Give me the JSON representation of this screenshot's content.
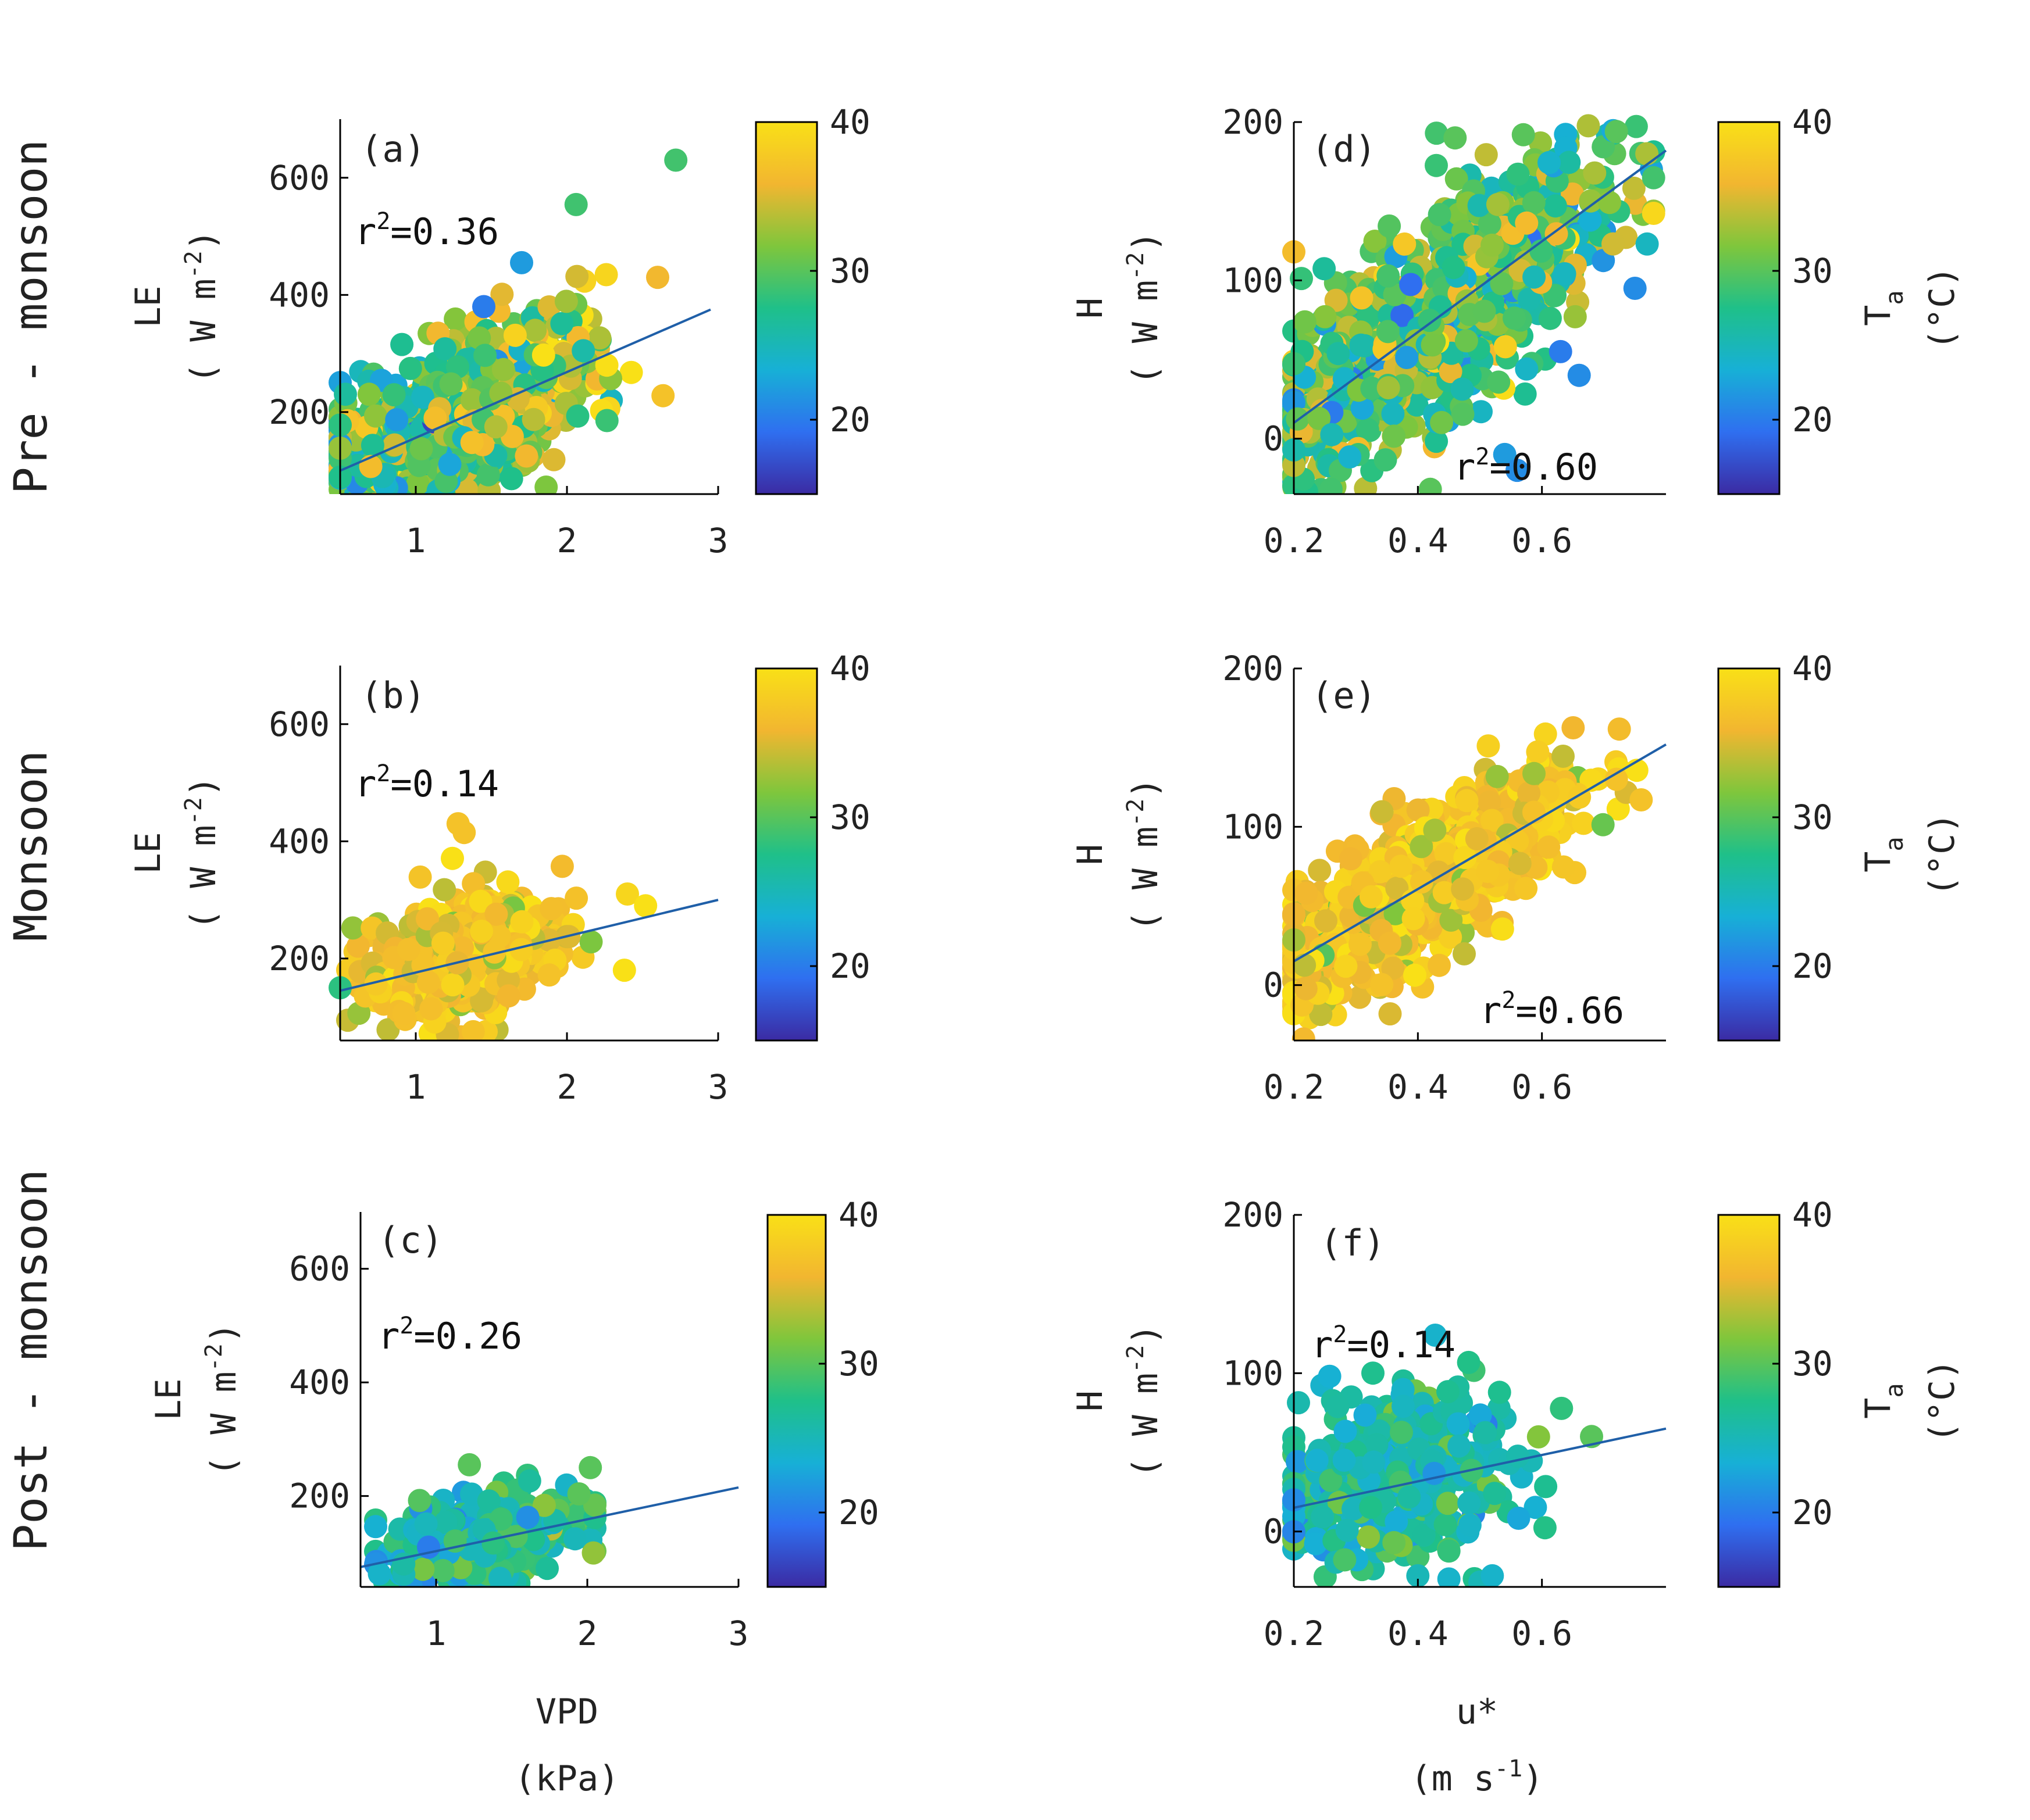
{
  "figure": {
    "rows": [
      {
        "title": "Pre - monsoon"
      },
      {
        "title": "Monsoon"
      },
      {
        "title": "Post - monsoon"
      }
    ],
    "left_column": {
      "y_label_top": "LE",
      "y_label_unit": "( W m",
      "y_label_exp": "-2",
      "y_label_close": ")",
      "x_label": "VPD",
      "x_label_unit": "(kPa)"
    },
    "right_column": {
      "y_label_top": "H",
      "y_label_unit": "( W m",
      "y_label_exp": "-2",
      "y_label_close": ")",
      "x_label": "u*",
      "x_label_unit_open": "(m s",
      "x_label_unit_exp": "-1",
      "x_label_unit_close": ")"
    },
    "colorbar": {
      "ticks": [
        "20",
        "30",
        "40"
      ],
      "range": [
        15,
        40
      ],
      "label": "T",
      "label_sub": "a",
      "label_unit": "(°C)",
      "colors": [
        "#3b2ba3",
        "#2f6ff0",
        "#17b0d6",
        "#1fc089",
        "#7fc63c",
        "#f2b630",
        "#f9e017"
      ]
    }
  },
  "chart_data": [
    {
      "id": "a",
      "panel_label": "(a)",
      "type": "scatter",
      "r2_base": "r",
      "r2_exp": "2",
      "r2_value": "=0.36",
      "xlabel": "VPD (kPa)",
      "ylabel": "LE (W m-2)",
      "xlim": [
        0.5,
        3
      ],
      "ylim": [
        60,
        700
      ],
      "xticks": [
        1,
        2,
        3
      ],
      "yticks": [
        200,
        400,
        600
      ],
      "fit": {
        "x1": 0.5,
        "y1": 100,
        "x2": 2.95,
        "y2": 375
      },
      "points": {
        "x_mean": 1.2,
        "x_sd": 0.45,
        "x_min": 0.5,
        "x_max": 2.9,
        "slope": 112,
        "intercept": 45,
        "noise": 65,
        "t_mean": 30,
        "t_sd": 4.5,
        "t_slope": 3.5,
        "n": 950
      },
      "extras": [
        [
          2.72,
          630,
          29
        ],
        [
          1.45,
          380,
          20
        ],
        [
          1.7,
          455,
          22
        ],
        [
          2.6,
          430,
          36
        ]
      ]
    },
    {
      "id": "b",
      "panel_label": "(b)",
      "type": "scatter",
      "r2_base": "r",
      "r2_exp": "2",
      "r2_value": "=0.14",
      "xlabel": "VPD (kPa)",
      "ylabel": "LE (W m-2)",
      "xlim": [
        0.5,
        3
      ],
      "ylim": [
        60,
        700
      ],
      "xticks": [
        1,
        2,
        3
      ],
      "yticks": [
        200,
        400,
        600
      ],
      "fit": {
        "x1": 0.5,
        "y1": 145,
        "x2": 3,
        "y2": 300
      },
      "points": {
        "x_mean": 1.3,
        "x_sd": 0.28,
        "x_min": 0.55,
        "x_max": 2.55,
        "slope": 60,
        "intercept": 125,
        "noise": 45,
        "t_mean": 36.5,
        "t_sd": 1.8,
        "t_slope": 0.5,
        "n": 720
      },
      "extras": [
        [
          1.28,
          430,
          37
        ],
        [
          1.32,
          415,
          37
        ],
        [
          2.4,
          310,
          39
        ],
        [
          2.52,
          290,
          40
        ],
        [
          2.38,
          180,
          40
        ],
        [
          1.38,
          75,
          37
        ],
        [
          0.5,
          150,
          28
        ]
      ]
    },
    {
      "id": "c",
      "panel_label": "(c)",
      "type": "scatter",
      "r2_base": "r",
      "r2_exp": "2",
      "r2_value": "=0.26",
      "xlabel": "VPD (kPa)",
      "ylabel": "LE (W m-2)",
      "xlim": [
        0.5,
        3
      ],
      "ylim": [
        40,
        700
      ],
      "xticks": [
        1,
        2,
        3
      ],
      "yticks": [
        200,
        400,
        600
      ],
      "fit": {
        "x1": 0.5,
        "y1": 75,
        "x2": 3,
        "y2": 215
      },
      "points": {
        "x_mean": 1.3,
        "x_sd": 0.33,
        "x_min": 0.6,
        "x_max": 2.05,
        "slope": 58,
        "intercept": 40,
        "noise": 38,
        "t_mean": 26.5,
        "t_sd": 2.5,
        "t_slope": 3,
        "n": 420
      },
      "extras": [
        [
          1.22,
          255,
          30
        ],
        [
          2.02,
          250,
          30
        ],
        [
          0.95,
          110,
          20
        ]
      ]
    },
    {
      "id": "d",
      "panel_label": "(d)",
      "type": "scatter",
      "r2_base": "r",
      "r2_exp": "2",
      "r2_value": "=0.60",
      "xlabel": "u* (m s-1)",
      "ylabel": "H (W m-2)",
      "xlim": [
        0.2,
        0.8
      ],
      "ylim": [
        -35,
        200
      ],
      "xticks": [
        0.2,
        0.4,
        0.6
      ],
      "yticks": [
        0,
        100,
        200
      ],
      "fit": {
        "x1": 0.2,
        "y1": 10,
        "x2": 0.8,
        "y2": 182
      },
      "points": {
        "x_mean": 0.42,
        "x_sd": 0.14,
        "x_min": 0.2,
        "x_max": 0.78,
        "slope": 285,
        "intercept": -45,
        "noise": 30,
        "t_mean": 29.5,
        "t_sd": 4,
        "t_slope": 0,
        "n": 1050
      },
      "extras": [
        [
          0.43,
          193,
          29
        ],
        [
          0.46,
          190,
          30
        ],
        [
          0.57,
          192,
          30
        ],
        [
          0.72,
          194,
          30
        ],
        [
          0.54,
          -10,
          22
        ],
        [
          0.56,
          -20,
          21
        ],
        [
          0.63,
          55,
          20
        ],
        [
          0.66,
          40,
          21
        ],
        [
          0.75,
          95,
          21
        ],
        [
          0.42,
          -32,
          30
        ],
        [
          0.26,
          -32,
          29
        ]
      ]
    },
    {
      "id": "e",
      "panel_label": "(e)",
      "type": "scatter",
      "r2_base": "r",
      "r2_exp": "2",
      "r2_value": "=0.66",
      "xlabel": "u* (m s-1)",
      "ylabel": "H (W m-2)",
      "xlim": [
        0.2,
        0.8
      ],
      "ylim": [
        -35,
        200
      ],
      "xticks": [
        0.2,
        0.4,
        0.6
      ],
      "yticks": [
        0,
        100,
        200
      ],
      "fit": {
        "x1": 0.2,
        "y1": 15,
        "x2": 0.8,
        "y2": 152
      },
      "points": {
        "x_mean": 0.41,
        "x_sd": 0.12,
        "x_min": 0.2,
        "x_max": 0.77,
        "slope": 228,
        "intercept": -30,
        "noise": 22,
        "t_mean": 36.5,
        "t_sd": 2,
        "t_slope": 0,
        "n": 780
      },
      "extras": [
        [
          0.2,
          60,
          37
        ],
        [
          0.22,
          58,
          36
        ],
        [
          0.76,
          117,
          37
        ],
        [
          0.72,
          130,
          37
        ]
      ]
    },
    {
      "id": "f",
      "panel_label": "(f)",
      "type": "scatter",
      "r2_base": "r",
      "r2_exp": "2",
      "r2_value": "=0.14",
      "xlabel": "u* (m s-1)",
      "ylabel": "H (W m-2)",
      "xlim": [
        0.2,
        0.8
      ],
      "ylim": [
        -35,
        200
      ],
      "xticks": [
        0.2,
        0.4,
        0.6
      ],
      "yticks": [
        0,
        100,
        200
      ],
      "fit": {
        "x1": 0.2,
        "y1": 15,
        "x2": 0.8,
        "y2": 65
      },
      "points": {
        "x_mean": 0.36,
        "x_sd": 0.09,
        "x_min": 0.2,
        "x_max": 0.66,
        "slope": 80,
        "intercept": 8,
        "noise": 26,
        "t_mean": 26,
        "t_sd": 2.5,
        "t_slope": 0,
        "n": 420
      },
      "extras": [
        [
          0.45,
          -30,
          24
        ],
        [
          0.5,
          -32,
          25
        ],
        [
          0.52,
          -28,
          24
        ],
        [
          0.4,
          -28,
          25
        ],
        [
          0.2,
          20,
          21
        ],
        [
          0.68,
          60,
          30
        ]
      ]
    }
  ]
}
